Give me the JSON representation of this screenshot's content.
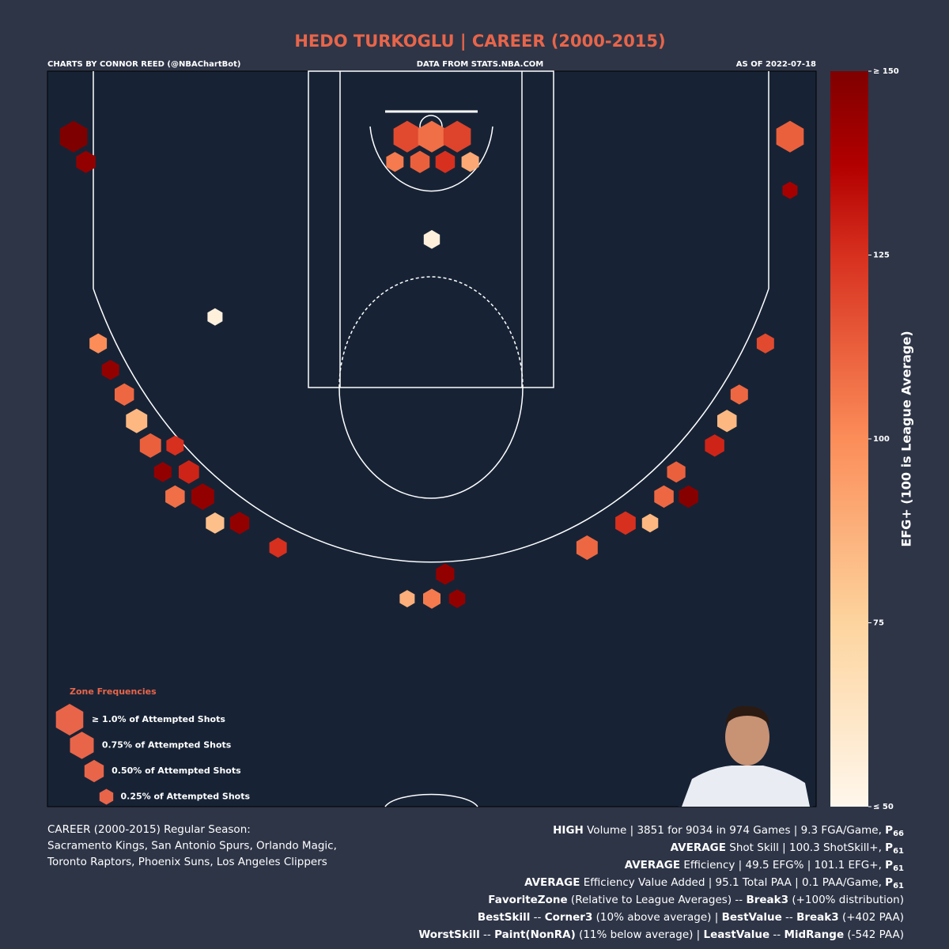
{
  "header": {
    "credit": "CHARTS BY CONNOR REED (@NBAChartBot)",
    "source": "DATA FROM STATS.NBA.COM",
    "date": "AS OF 2022-07-18"
  },
  "chart_data": {
    "type": "hexbin",
    "title": "HEDO TURKOGLU | CAREER (2000-2015)",
    "xlim": [
      -25,
      25
    ],
    "ylim": [
      -2.2,
      36.7
    ],
    "color_scale": {
      "label": "EFG+ (100 is League Average)",
      "lim": [
        50,
        150
      ],
      "stops": [
        {
          "value": 50,
          "color": "#fff7ec"
        },
        {
          "value": 75,
          "color": "#fdd49e"
        },
        {
          "value": 100,
          "color": "#fc8d59"
        },
        {
          "value": 125,
          "color": "#d7301f"
        },
        {
          "value": 137,
          "color": "#b30000"
        },
        {
          "value": 150,
          "color": "#7f0000"
        }
      ],
      "ticks": [
        {
          "value": 50,
          "label": "≤ 50"
        },
        75,
        100,
        125,
        {
          "value": 150,
          "label": "≥ 150"
        }
      ]
    },
    "size_legend": {
      "title": "Zone Frequencies",
      "items": [
        {
          "value": 1.0,
          "label": "≥ 1.0% of Attempted Shots"
        },
        {
          "value": 0.75,
          "label": "0.75% of Attempted Shots"
        },
        {
          "value": 0.5,
          "label": "0.50% of Attempted Shots"
        },
        {
          "value": 0.25,
          "label": "0.25% of Attempted Shots"
        }
      ]
    },
    "hexes": [
      {
        "x": -23.3,
        "y": 1.26,
        "value": 150,
        "freq": 1.0
      },
      {
        "x": -22.5,
        "y": 2.6,
        "value": 145,
        "freq": 0.5
      },
      {
        "x": 23.3,
        "y": 1.26,
        "value": 112,
        "freq": 1.0
      },
      {
        "x": 23.3,
        "y": 4.1,
        "value": 140,
        "freq": 0.3
      },
      {
        "x": -1.6,
        "y": 1.26,
        "value": 118,
        "freq": 1.0
      },
      {
        "x": 0,
        "y": 1.26,
        "value": 108,
        "freq": 1.0
      },
      {
        "x": 1.65,
        "y": 1.26,
        "value": 120,
        "freq": 1.0
      },
      {
        "x": -0.77,
        "y": 2.6,
        "value": 112,
        "freq": 0.5
      },
      {
        "x": 0.87,
        "y": 2.6,
        "value": 125,
        "freq": 0.5
      },
      {
        "x": 2.5,
        "y": 2.6,
        "value": 90,
        "freq": 0.4
      },
      {
        "x": -2.4,
        "y": 2.6,
        "value": 105,
        "freq": 0.4
      },
      {
        "x": 0,
        "y": 6.7,
        "value": 55,
        "freq": 0.35
      },
      {
        "x": -21.7,
        "y": 12.2,
        "value": 100,
        "freq": 0.4
      },
      {
        "x": -20.9,
        "y": 13.6,
        "value": 145,
        "freq": 0.4
      },
      {
        "x": -20.0,
        "y": 14.9,
        "value": 110,
        "freq": 0.5
      },
      {
        "x": -19.2,
        "y": 16.3,
        "value": 85,
        "freq": 0.6
      },
      {
        "x": -18.3,
        "y": 17.6,
        "value": 112,
        "freq": 0.6
      },
      {
        "x": -16.7,
        "y": 17.6,
        "value": 125,
        "freq": 0.4
      },
      {
        "x": -15.8,
        "y": 19.0,
        "value": 128,
        "freq": 0.55
      },
      {
        "x": -17.5,
        "y": 19.0,
        "value": 145,
        "freq": 0.4
      },
      {
        "x": -14.9,
        "y": 20.3,
        "value": 145,
        "freq": 0.7
      },
      {
        "x": -16.7,
        "y": 20.3,
        "value": 108,
        "freq": 0.5
      },
      {
        "x": -14.1,
        "y": 21.7,
        "value": 82,
        "freq": 0.45
      },
      {
        "x": -12.5,
        "y": 21.7,
        "value": 145,
        "freq": 0.5
      },
      {
        "x": -10.0,
        "y": 23.0,
        "value": 125,
        "freq": 0.4
      },
      {
        "x": 21.7,
        "y": 12.2,
        "value": 118,
        "freq": 0.4
      },
      {
        "x": 20.0,
        "y": 14.9,
        "value": 110,
        "freq": 0.4
      },
      {
        "x": 19.2,
        "y": 16.3,
        "value": 85,
        "freq": 0.5
      },
      {
        "x": 18.4,
        "y": 17.6,
        "value": 128,
        "freq": 0.5
      },
      {
        "x": 15.9,
        "y": 19.0,
        "value": 112,
        "freq": 0.45
      },
      {
        "x": 15.1,
        "y": 20.3,
        "value": 110,
        "freq": 0.5
      },
      {
        "x": 16.7,
        "y": 20.3,
        "value": 148,
        "freq": 0.5
      },
      {
        "x": 12.6,
        "y": 21.7,
        "value": 125,
        "freq": 0.55
      },
      {
        "x": 14.2,
        "y": 21.7,
        "value": 85,
        "freq": 0.35
      },
      {
        "x": 10.1,
        "y": 23.0,
        "value": 110,
        "freq": 0.6
      },
      {
        "x": 0.87,
        "y": 24.4,
        "value": 145,
        "freq": 0.45
      },
      {
        "x": 0,
        "y": 25.7,
        "value": 105,
        "freq": 0.4
      },
      {
        "x": -1.6,
        "y": 25.7,
        "value": 88,
        "freq": 0.3
      },
      {
        "x": 1.65,
        "y": 25.7,
        "value": 145,
        "freq": 0.35
      },
      {
        "x": -14.1,
        "y": 10.8,
        "value": 55,
        "freq": 0.3
      }
    ]
  },
  "footer": {
    "left": [
      "CAREER (2000-2015) Regular Season:",
      "Sacramento Kings, San Antonio Spurs, Orlando Magic,",
      "Toronto Raptors, Phoenix Suns, Los Angeles Clippers"
    ],
    "right": [
      [
        {
          "text": "HIGH",
          "bold": true
        },
        {
          "text": " Volume | 3851 for 9034 in 974 Games | 9.3 FGA/Game, "
        },
        {
          "text": "P",
          "bold": true
        },
        {
          "text": "66",
          "bold": true,
          "sub": true
        }
      ],
      [
        {
          "text": "AVERAGE",
          "bold": true
        },
        {
          "text": " Shot Skill | 100.3 ShotSkill+, "
        },
        {
          "text": "P",
          "bold": true
        },
        {
          "text": "61",
          "bold": true,
          "sub": true
        }
      ],
      [
        {
          "text": "AVERAGE",
          "bold": true
        },
        {
          "text": " Efficiency | 49.5 EFG% | 101.1 EFG+, "
        },
        {
          "text": "P",
          "bold": true
        },
        {
          "text": "61",
          "bold": true,
          "sub": true
        }
      ],
      [
        {
          "text": "AVERAGE",
          "bold": true
        },
        {
          "text": " Efficiency Value Added | 95.1 Total PAA | 0.1 PAA/Game, "
        },
        {
          "text": "P",
          "bold": true
        },
        {
          "text": "61",
          "bold": true,
          "sub": true
        }
      ],
      [
        {
          "text": "FavoriteZone",
          "bold": true
        },
        {
          "text": " (Relative to League Averages) -- "
        },
        {
          "text": "Break3",
          "bold": true
        },
        {
          "text": " (+100% distribution)"
        }
      ],
      [
        {
          "text": "BestSkill",
          "bold": true
        },
        {
          "text": " -- "
        },
        {
          "text": "Corner3",
          "bold": true
        },
        {
          "text": " (10% above average) | "
        },
        {
          "text": "BestValue",
          "bold": true
        },
        {
          "text": " -- "
        },
        {
          "text": "Break3",
          "bold": true
        },
        {
          "text": " (+402 PAA)"
        }
      ],
      [
        {
          "text": "WorstSkill",
          "bold": true
        },
        {
          "text": " -- "
        },
        {
          "text": "Paint(NonRA)",
          "bold": true
        },
        {
          "text": " (11% below average) | "
        },
        {
          "text": "LeastValue",
          "bold": true
        },
        {
          "text": " -- "
        },
        {
          "text": "MidRange",
          "bold": true
        },
        {
          "text": " (-542 PAA)"
        }
      ]
    ]
  }
}
